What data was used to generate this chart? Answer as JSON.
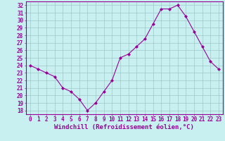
{
  "hours": [
    0,
    1,
    2,
    3,
    4,
    5,
    6,
    7,
    8,
    9,
    10,
    11,
    12,
    13,
    14,
    15,
    16,
    17,
    18,
    19,
    20,
    21,
    22,
    23
  ],
  "windchill": [
    24,
    23.5,
    23,
    22.5,
    21,
    20.5,
    19.5,
    18,
    19,
    20.5,
    22,
    25,
    25.5,
    26.5,
    27.5,
    29.5,
    31.5,
    31.5,
    32,
    30.5,
    28.5,
    26.5,
    24.5,
    23.5
  ],
  "line_color": "#990099",
  "marker": "D",
  "marker_size": 2.0,
  "bg_color": "#c8f0f0",
  "grid_color": "#a0c8c8",
  "xlabel": "Windchill (Refroidissement éolien,°C)",
  "ylim": [
    17.5,
    32.5
  ],
  "yticks": [
    18,
    19,
    20,
    21,
    22,
    23,
    24,
    25,
    26,
    27,
    28,
    29,
    30,
    31,
    32
  ],
  "xticks": [
    0,
    1,
    2,
    3,
    4,
    5,
    6,
    7,
    8,
    9,
    10,
    11,
    12,
    13,
    14,
    15,
    16,
    17,
    18,
    19,
    20,
    21,
    22,
    23
  ],
  "tick_label_fontsize": 5.5,
  "xlabel_fontsize": 6.5,
  "line_color_hex": "#990099",
  "tick_color": "#990099",
  "spine_color": "#990099"
}
